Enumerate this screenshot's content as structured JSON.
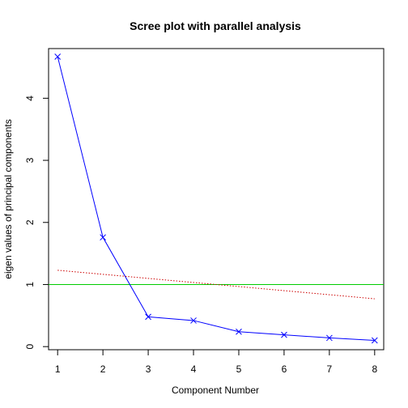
{
  "chart_data": {
    "type": "line",
    "title": "Scree plot with parallel analysis",
    "xlabel": "Component Number",
    "ylabel": "eigen values of principal components",
    "xlim": [
      0.8,
      8.2
    ],
    "ylim": [
      -0.05,
      4.8
    ],
    "x_ticks": [
      1,
      2,
      3,
      4,
      5,
      6,
      7,
      8
    ],
    "y_ticks": [
      0,
      1,
      2,
      3,
      4
    ],
    "grid": false,
    "series": [
      {
        "key": "observed",
        "x": [
          1,
          2,
          3,
          4,
          5,
          6,
          7,
          8
        ],
        "values": [
          4.67,
          1.76,
          0.48,
          0.42,
          0.24,
          0.19,
          0.14,
          0.1
        ],
        "color": "#0000ff",
        "marker": "x",
        "line_style": "solid"
      },
      {
        "key": "parallel",
        "x": [
          1,
          8
        ],
        "values": [
          1.23,
          0.77
        ],
        "color": "#cc0000",
        "marker": "none",
        "line_style": "dotted"
      }
    ],
    "reference_lines": [
      {
        "key": "eigenvalue-one",
        "y": 1,
        "color": "#00cc00",
        "line_style": "solid"
      }
    ]
  }
}
